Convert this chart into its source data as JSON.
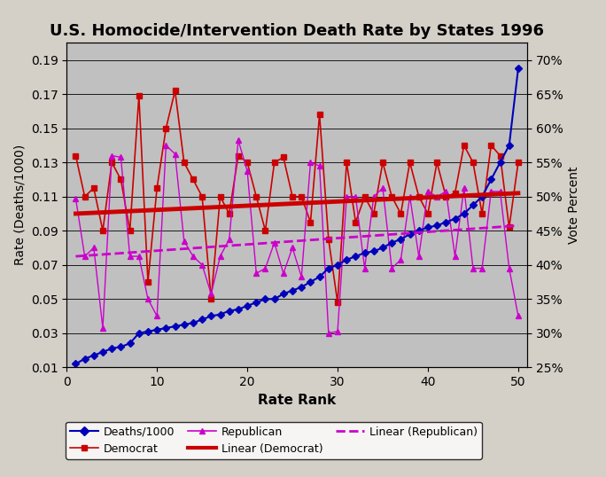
{
  "title": "U.S. Homocide/Intervention Death Rate by States 1996",
  "xlabel": "Rate Rank",
  "ylabel_left": "Rate (Deaths/1000)",
  "ylabel_right": "Vote Percent",
  "bg_color": "#c0c0c0",
  "fig_bg_color": "#d4d0c8",
  "deaths_per_1000": [
    0.012,
    0.015,
    0.017,
    0.019,
    0.021,
    0.022,
    0.024,
    0.03,
    0.031,
    0.032,
    0.033,
    0.034,
    0.035,
    0.036,
    0.038,
    0.04,
    0.041,
    0.043,
    0.044,
    0.046,
    0.048,
    0.05,
    0.05,
    0.053,
    0.055,
    0.057,
    0.06,
    0.063,
    0.068,
    0.07,
    0.073,
    0.075,
    0.077,
    0.078,
    0.08,
    0.083,
    0.085,
    0.088,
    0.09,
    0.092,
    0.093,
    0.095,
    0.097,
    0.1,
    0.105,
    0.11,
    0.12,
    0.13,
    0.14,
    0.185
  ],
  "democrat": [
    0.134,
    0.11,
    0.115,
    0.09,
    0.13,
    0.12,
    0.09,
    0.169,
    0.06,
    0.115,
    0.15,
    0.172,
    0.13,
    0.12,
    0.11,
    0.05,
    0.11,
    0.1,
    0.134,
    0.13,
    0.11,
    0.09,
    0.13,
    0.133,
    0.11,
    0.11,
    0.095,
    0.158,
    0.085,
    0.048,
    0.13,
    0.095,
    0.11,
    0.1,
    0.13,
    0.11,
    0.1,
    0.13,
    0.11,
    0.1,
    0.13,
    0.11,
    0.112,
    0.14,
    0.13,
    0.1,
    0.14,
    0.134,
    0.092,
    0.13
  ],
  "republican": [
    0.109,
    0.075,
    0.08,
    0.033,
    0.134,
    0.133,
    0.075,
    0.075,
    0.05,
    0.04,
    0.14,
    0.135,
    0.084,
    0.075,
    0.07,
    0.053,
    0.075,
    0.085,
    0.143,
    0.125,
    0.065,
    0.068,
    0.083,
    0.065,
    0.08,
    0.063,
    0.13,
    0.128,
    0.03,
    0.031,
    0.11,
    0.11,
    0.068,
    0.11,
    0.115,
    0.068,
    0.073,
    0.11,
    0.075,
    0.113,
    0.11,
    0.113,
    0.075,
    0.115,
    0.068,
    0.068,
    0.113,
    0.113,
    0.068,
    0.04
  ],
  "linear_dem": [
    0.1,
    0.112
  ],
  "linear_rep": [
    0.075,
    0.093
  ],
  "xlim": [
    0,
    51
  ],
  "ylim_left": [
    0.01,
    0.2
  ],
  "yticks_left": [
    0.01,
    0.03,
    0.05,
    0.07,
    0.09,
    0.11,
    0.13,
    0.15,
    0.17,
    0.19
  ],
  "right_axis_left_vals": [
    0.01,
    0.03,
    0.05,
    0.07,
    0.09,
    0.11,
    0.13,
    0.15,
    0.17,
    0.19
  ],
  "right_axis_labels": [
    "25%",
    "30%",
    "35%",
    "40%",
    "45%",
    "50%",
    "55%",
    "60%",
    "65%",
    "70%"
  ],
  "xticks": [
    0,
    10,
    20,
    30,
    40,
    50
  ],
  "deaths_color": "#0000bb",
  "democrat_color": "#cc0000",
  "republican_color": "#cc00cc",
  "linear_dem_color": "#cc0000",
  "linear_rep_color": "#cc00cc",
  "grid_color": "#000000",
  "legend_items": [
    {
      "label": "Deaths/1000",
      "color": "#0000bb",
      "marker": "D",
      "linestyle": "-",
      "linewidth": 1.5,
      "markersize": 5
    },
    {
      "label": "Democrat",
      "color": "#cc0000",
      "marker": "s",
      "linestyle": "-",
      "linewidth": 1.2,
      "markersize": 5
    },
    {
      "label": "Republican",
      "color": "#cc00cc",
      "marker": "^",
      "linestyle": "-",
      "linewidth": 1.2,
      "markersize": 5
    },
    {
      "label": "Linear (Democrat)",
      "color": "#cc0000",
      "marker": "",
      "linestyle": "-",
      "linewidth": 3.0,
      "markersize": 0
    },
    {
      "label": "Linear (Republican)",
      "color": "#cc00cc",
      "marker": "",
      "linestyle": "--",
      "linewidth": 2.0,
      "markersize": 0
    }
  ]
}
